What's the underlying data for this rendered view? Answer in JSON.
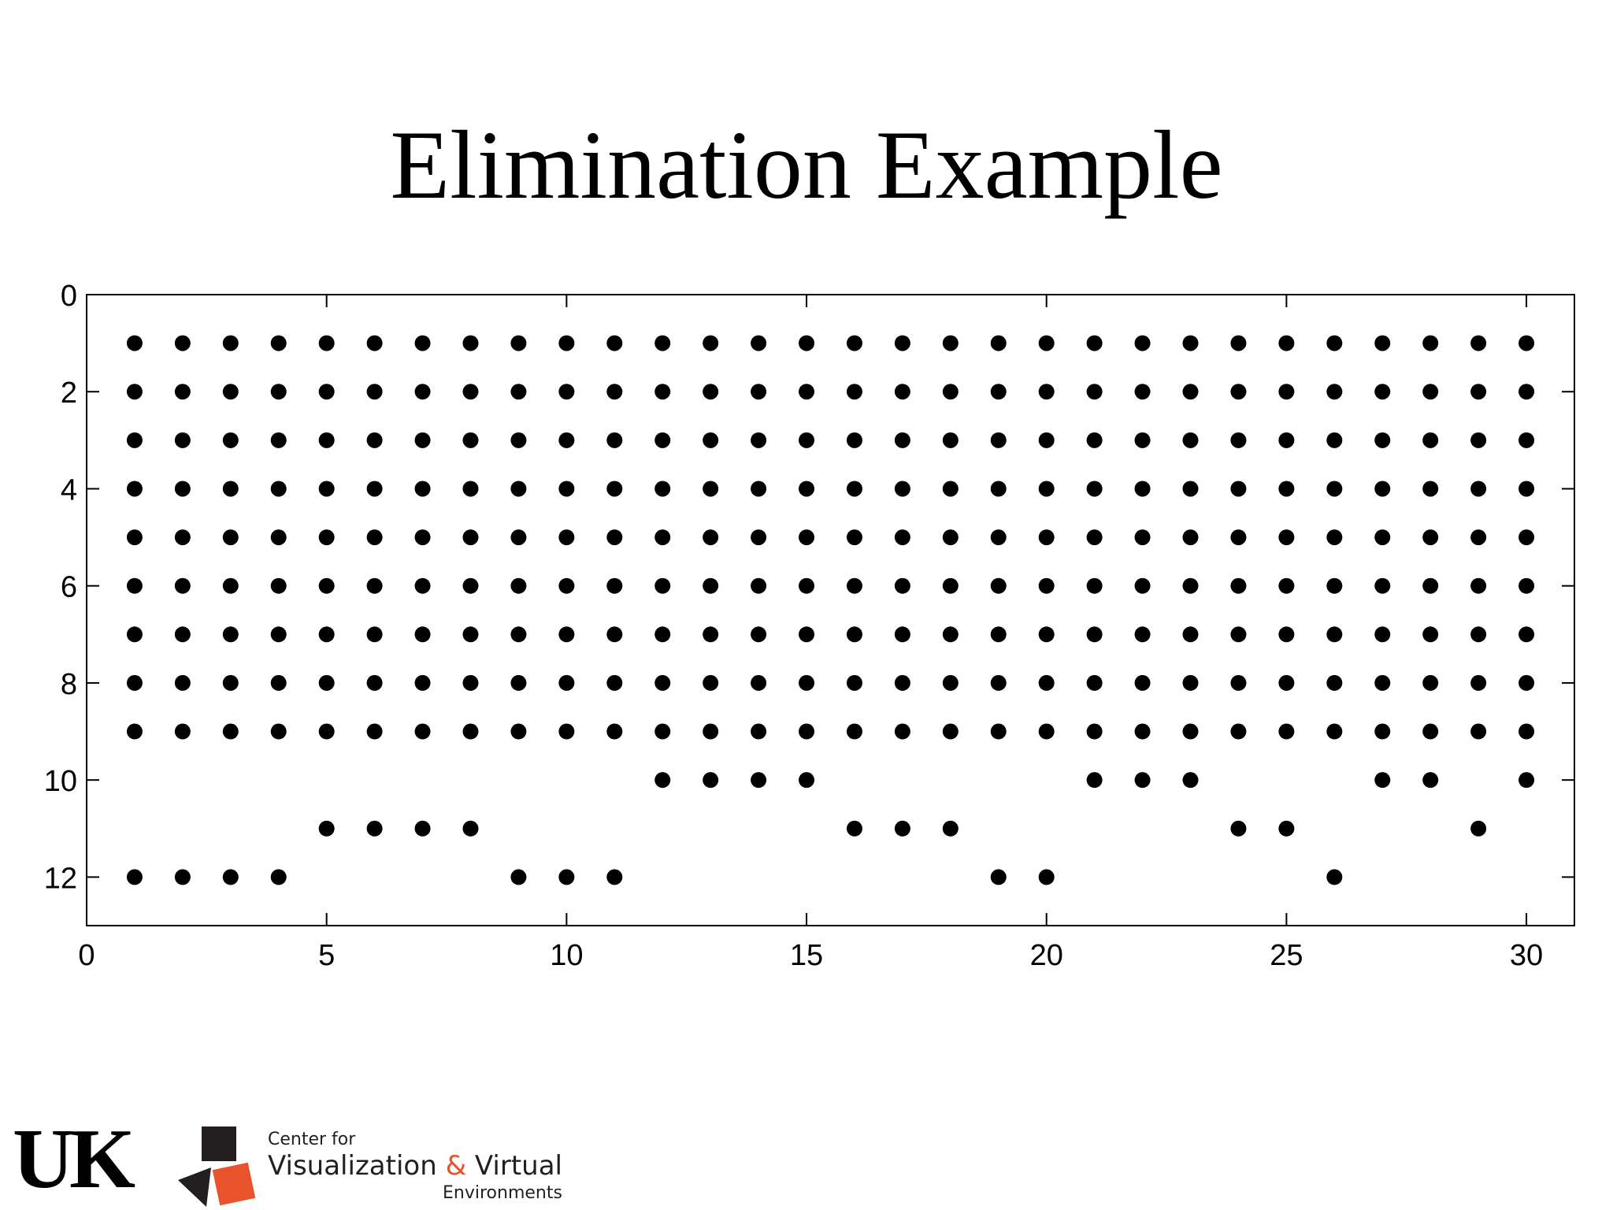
{
  "slide": {
    "title": "Elimination Example"
  },
  "logos": {
    "uk_text": "UK",
    "cvve_line1": "Center for",
    "cvve_line2a": "Visualization ",
    "cvve_amp": "&",
    "cvve_line2b": " Virtual",
    "cvve_line3": "Environments",
    "accent_color": "#e8532b"
  },
  "chart_data": {
    "type": "scatter",
    "title": "",
    "xlabel": "",
    "ylabel": "",
    "xlim": [
      0,
      31
    ],
    "ylim": [
      0,
      13
    ],
    "y_reversed": true,
    "grid": false,
    "xticks": [
      0,
      5,
      10,
      15,
      20,
      25,
      30
    ],
    "yticks": [
      0,
      2,
      4,
      6,
      8,
      10,
      12
    ],
    "marker_color": "#000000",
    "full_rows": [
      1,
      2,
      3,
      4,
      5,
      6,
      7,
      8,
      9
    ],
    "full_row_x": [
      1,
      2,
      3,
      4,
      5,
      6,
      7,
      8,
      9,
      10,
      11,
      12,
      13,
      14,
      15,
      16,
      17,
      18,
      19,
      20,
      21,
      22,
      23,
      24,
      25,
      26,
      27,
      28,
      29,
      30
    ],
    "partial_rows": [
      {
        "y": 10,
        "x": [
          12,
          13,
          14,
          15,
          21,
          22,
          23,
          27,
          28,
          30
        ]
      },
      {
        "y": 11,
        "x": [
          5,
          6,
          7,
          8,
          16,
          17,
          18,
          24,
          25,
          29
        ]
      },
      {
        "y": 12,
        "x": [
          1,
          2,
          3,
          4,
          9,
          10,
          11,
          19,
          20,
          26
        ]
      }
    ]
  }
}
